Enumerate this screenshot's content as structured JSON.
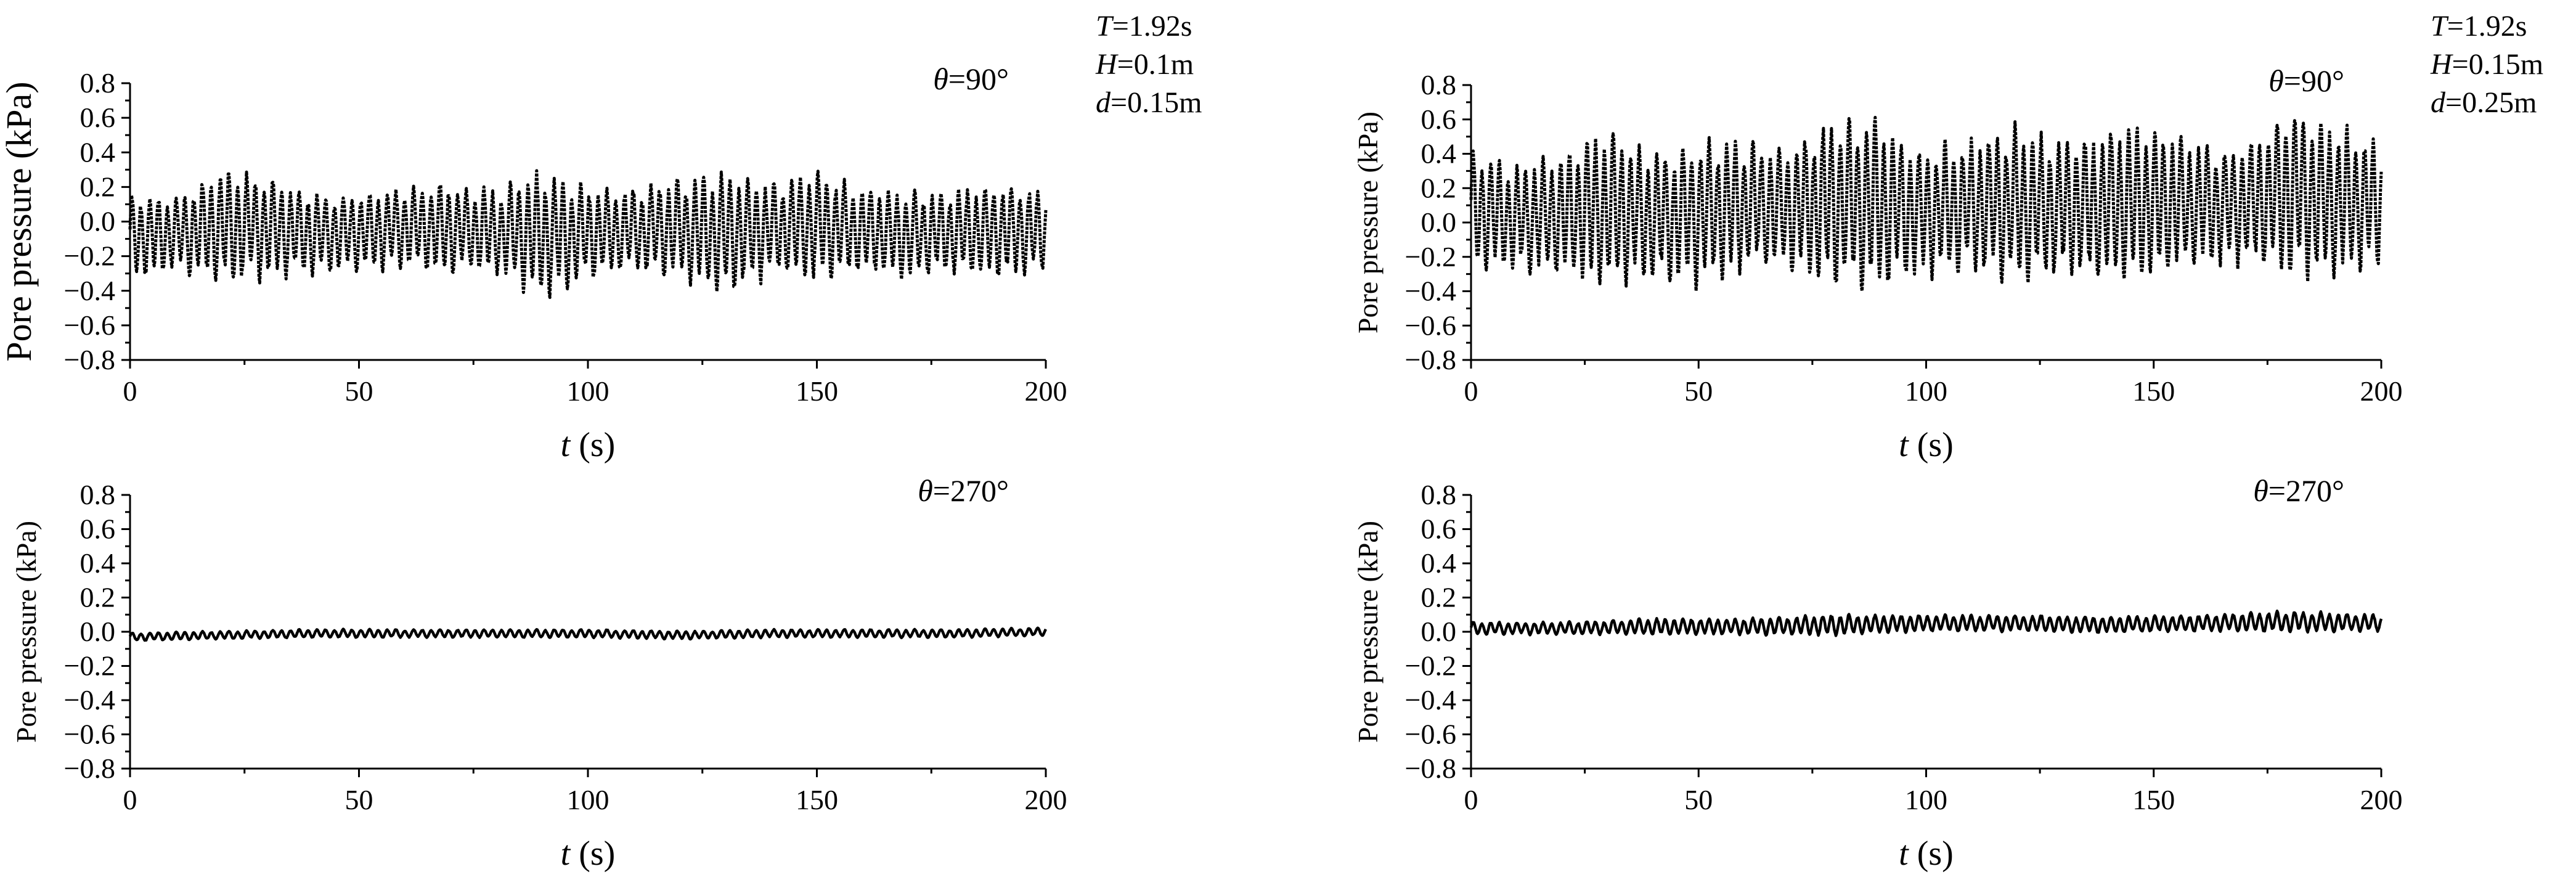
{
  "figure": {
    "colors": {
      "line": "#000000",
      "background": "#ffffff"
    }
  },
  "chart_data": [
    {
      "id": "top-left",
      "type": "line",
      "xlabel_var": "t",
      "xlabel_unit": " (s)",
      "ylabel": "Pore pressure (kPa)",
      "xlim": [
        0,
        200
      ],
      "ylim": [
        -0.8,
        0.8
      ],
      "xticks": [
        "0",
        "50",
        "100",
        "150",
        "200"
      ],
      "yticks": [
        "0.8",
        "0.6",
        "0.4",
        "0.2",
        "0.0",
        "−0.2",
        "−0.4",
        "−0.6",
        "−0.8"
      ],
      "annotation_var": "θ",
      "annotation_value": "=90°",
      "params": [
        {
          "var": "T",
          "value": "=1.92s"
        },
        {
          "var": "H",
          "value": "=0.1m"
        },
        {
          "var": "d",
          "value": "=0.15m"
        }
      ],
      "grid": false,
      "series": [
        {
          "approx": true,
          "period_s": 1.92,
          "x": [
            0,
            10,
            20,
            30,
            40,
            50,
            60,
            70,
            80,
            90,
            100,
            110,
            120,
            130,
            140,
            150,
            160,
            170,
            180,
            190,
            200
          ],
          "mean": [
            -0.08,
            -0.07,
            -0.03,
            -0.04,
            -0.07,
            -0.06,
            -0.03,
            -0.04,
            -0.06,
            -0.08,
            -0.07,
            -0.05,
            -0.04,
            -0.07,
            -0.04,
            -0.02,
            -0.05,
            -0.08,
            -0.06,
            -0.05,
            -0.06
          ],
          "amplitude": [
            0.2,
            0.18,
            0.28,
            0.24,
            0.2,
            0.18,
            0.2,
            0.22,
            0.2,
            0.3,
            0.22,
            0.2,
            0.24,
            0.3,
            0.22,
            0.26,
            0.2,
            0.2,
            0.2,
            0.22,
            0.2
          ]
        }
      ]
    },
    {
      "id": "top-right",
      "type": "line",
      "xlabel_var": "t",
      "xlabel_unit": " (s)",
      "ylabel": "Pore pressure (kPa)",
      "xlim": [
        0,
        200
      ],
      "ylim": [
        -0.8,
        0.8
      ],
      "xticks": [
        "0",
        "50",
        "100",
        "150",
        "200"
      ],
      "yticks": [
        "0.8",
        "0.6",
        "0.4",
        "0.2",
        "0.0",
        "−0.2",
        "−0.4",
        "−0.6",
        "−0.8"
      ],
      "annotation_var": "θ",
      "annotation_value": "=90°",
      "params": [
        {
          "var": "T",
          "value": "=1.92s"
        },
        {
          "var": "H",
          "value": "=0.15m"
        },
        {
          "var": "d",
          "value": "=0.25m"
        }
      ],
      "grid": false,
      "series": [
        {
          "approx": true,
          "period_s": 1.92,
          "x": [
            0,
            10,
            20,
            30,
            40,
            50,
            60,
            70,
            80,
            90,
            100,
            110,
            120,
            130,
            140,
            150,
            160,
            170,
            180,
            190,
            200
          ],
          "mean": [
            0.08,
            0.02,
            0.05,
            0.08,
            0.03,
            0.06,
            0.1,
            0.08,
            0.12,
            0.1,
            0.06,
            0.1,
            0.1,
            0.08,
            0.1,
            0.12,
            0.1,
            0.1,
            0.18,
            0.12,
            0.1
          ],
          "amplitude": [
            0.3,
            0.25,
            0.3,
            0.38,
            0.3,
            0.35,
            0.32,
            0.3,
            0.42,
            0.4,
            0.3,
            0.32,
            0.38,
            0.32,
            0.38,
            0.36,
            0.3,
            0.28,
            0.42,
            0.36,
            0.3
          ]
        }
      ]
    },
    {
      "id": "bottom-left",
      "type": "line",
      "xlabel_var": "t",
      "xlabel_unit": " (s)",
      "ylabel": "Pore pressure (kPa)",
      "xlim": [
        0,
        200
      ],
      "ylim": [
        -0.8,
        0.8
      ],
      "xticks": [
        "0",
        "50",
        "100",
        "150",
        "200"
      ],
      "yticks": [
        "0.8",
        "0.6",
        "0.4",
        "0.2",
        "0.0",
        "−0.2",
        "−0.4",
        "−0.6",
        "−0.8"
      ],
      "annotation_var": "θ",
      "annotation_value": "=270°",
      "params": [],
      "grid": false,
      "series": [
        {
          "approx": true,
          "period_s": 1.92,
          "x": [
            0,
            20,
            40,
            60,
            80,
            100,
            120,
            140,
            160,
            180,
            200
          ],
          "mean": [
            -0.03,
            -0.02,
            -0.01,
            -0.01,
            -0.01,
            -0.01,
            -0.02,
            -0.01,
            -0.01,
            -0.01,
            0.0
          ],
          "amplitude": [
            0.02,
            0.02,
            0.02,
            0.02,
            0.02,
            0.02,
            0.02,
            0.02,
            0.02,
            0.02,
            0.02
          ]
        }
      ]
    },
    {
      "id": "bottom-right",
      "type": "line",
      "xlabel_var": "t",
      "xlabel_unit": " (s)",
      "ylabel": "Pore pressure (kPa)",
      "xlim": [
        0,
        200
      ],
      "ylim": [
        -0.8,
        0.8
      ],
      "xticks": [
        "0",
        "50",
        "100",
        "150",
        "200"
      ],
      "yticks": [
        "0.8",
        "0.6",
        "0.4",
        "0.2",
        "0.0",
        "−0.2",
        "−0.4",
        "−0.6",
        "−0.8"
      ],
      "annotation_var": "θ",
      "annotation_value": "=270°",
      "params": [],
      "grid": false,
      "series": [
        {
          "approx": true,
          "period_s": 1.92,
          "x": [
            0,
            20,
            40,
            60,
            80,
            100,
            120,
            140,
            160,
            180,
            200
          ],
          "mean": [
            0.02,
            0.02,
            0.03,
            0.03,
            0.04,
            0.05,
            0.05,
            0.04,
            0.05,
            0.06,
            0.05
          ],
          "amplitude": [
            0.03,
            0.03,
            0.04,
            0.04,
            0.05,
            0.04,
            0.04,
            0.04,
            0.04,
            0.05,
            0.04
          ]
        }
      ]
    }
  ]
}
